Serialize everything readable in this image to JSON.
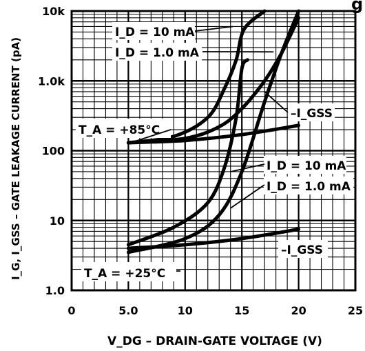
{
  "chart_data": {
    "type": "line",
    "title": "",
    "xlabel": "V_DG – DRAIN-GATE VOLTAGE (V)",
    "ylabel": "I_G, I_GSS – GATE LEAKAGE CURRENT (pA)",
    "x_ticks": [
      "0",
      "5.0",
      "10",
      "15",
      "20",
      "25"
    ],
    "y_ticks": [
      "1.0",
      "10",
      "100",
      "1.0k",
      "10k"
    ],
    "xlim": [
      0,
      25
    ],
    "ylim": [
      1.0,
      10000
    ],
    "y_scale": "log",
    "grid": true,
    "series": [
      {
        "name": "ID = 10 mA (TA = +85°C)",
        "x": [
          5,
          9,
          12,
          13.5,
          14.5,
          15.2,
          17
        ],
        "y": [
          130,
          160,
          300,
          800,
          2000,
          5500,
          10000
        ]
      },
      {
        "name": "ID = 1.0 mA (TA = +85°C)",
        "x": [
          5,
          10,
          13,
          15,
          17,
          18.5,
          20
        ],
        "y": [
          130,
          150,
          220,
          400,
          1000,
          2500,
          8000
        ]
      },
      {
        "name": "-IGSS (TA = +85°C)",
        "x": [
          5,
          10,
          15,
          20
        ],
        "y": [
          130,
          140,
          170,
          230
        ]
      },
      {
        "name": "ID = 10 mA (TA = +25°C)",
        "x": [
          5,
          9,
          12,
          13.5,
          14.5,
          15,
          15.5
        ],
        "y": [
          4.5,
          8,
          18,
          60,
          300,
          1500,
          2000
        ]
      },
      {
        "name": "ID = 1.0 mA (TA = +25°C)",
        "x": [
          5,
          10,
          13,
          15,
          17,
          18.5,
          20
        ],
        "y": [
          3.5,
          5.5,
          12,
          50,
          500,
          2500,
          10000
        ]
      },
      {
        "name": "-IGSS (TA = +25°C)",
        "x": [
          5,
          10,
          15,
          20
        ],
        "y": [
          4,
          4.5,
          5.5,
          7.5
        ]
      }
    ],
    "annotations": {
      "id_10ma_top": "I_D = 10 mA",
      "id_1ma_top": "I_D = 1.0 mA",
      "ta_85": "T_A = +85°C",
      "igss_top": "–I_GSS",
      "id_10ma_bottom": "I_D = 10 mA",
      "id_1ma_bottom": "I_D = 1.0 mA",
      "igss_bottom": "–I_GSS",
      "ta_25": "T_A = +25°C"
    },
    "partial_title": "g"
  }
}
